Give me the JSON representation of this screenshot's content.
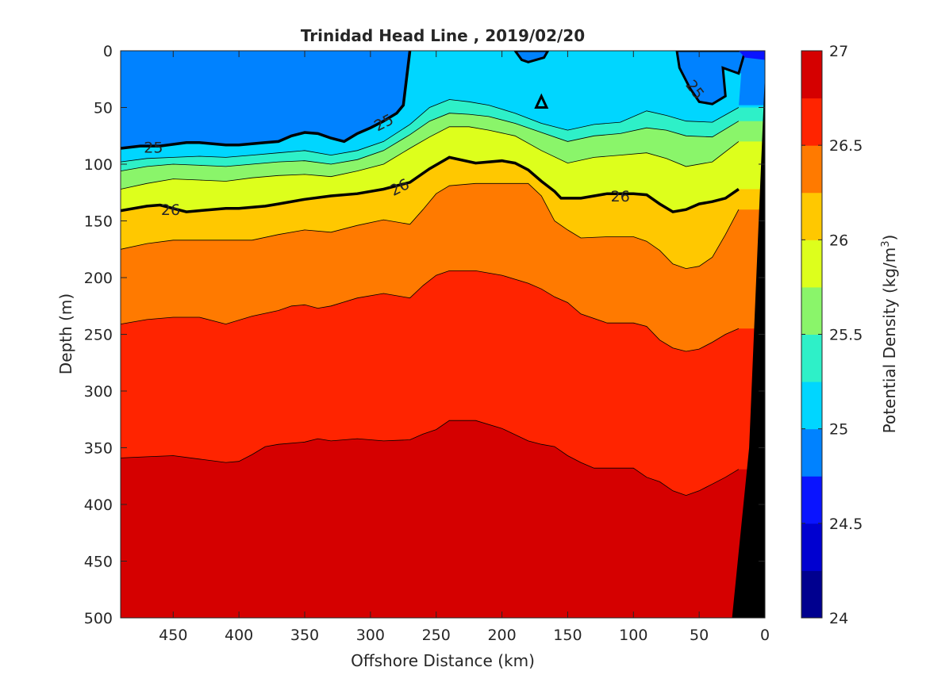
{
  "chart_data": {
    "type": "contour",
    "title": "Trinidad Head Line , 2019/02/20",
    "xlabel": "Offshore Distance (km)",
    "ylabel": "Depth (m)",
    "xlim": [
      490,
      0
    ],
    "ylim": [
      0,
      500
    ],
    "x_reversed": true,
    "y_reversed": true,
    "xticks": [
      450,
      400,
      350,
      300,
      250,
      200,
      150,
      100,
      50,
      0
    ],
    "yticks": [
      0,
      50,
      100,
      150,
      200,
      250,
      300,
      350,
      400,
      450,
      500
    ],
    "colorbar": {
      "label": "Potential Density (kg/m",
      "label_superscript": "3",
      "label_suffix": ")",
      "range": [
        24,
        27
      ],
      "ticks": [
        24,
        24.5,
        25,
        25.5,
        26,
        26.5,
        27
      ],
      "levels": [
        24,
        24.25,
        24.5,
        24.75,
        25,
        25.25,
        25.5,
        25.75,
        26,
        26.25,
        26.5,
        26.75,
        27
      ],
      "colors": [
        "#00008f",
        "#0000d0",
        "#0a14ff",
        "#0082ff",
        "#00d6ff",
        "#2ef0c8",
        "#8af56a",
        "#ddff1c",
        "#ffc800",
        "#ff7a00",
        "#ff2400",
        "#d50000"
      ]
    },
    "contour_labels": [
      {
        "text": "25",
        "x": 465,
        "y": 85,
        "angle": 0
      },
      {
        "text": "25",
        "x": 290,
        "y": 63,
        "angle": -27
      },
      {
        "text": "25",
        "x": 53,
        "y": 34,
        "angle": 53
      },
      {
        "text": "26",
        "x": 452,
        "y": 140,
        "angle": 0
      },
      {
        "text": "26",
        "x": 278,
        "y": 120,
        "angle": -27
      },
      {
        "text": "26",
        "x": 110,
        "y": 128,
        "angle": 0
      }
    ],
    "isopycnals": [
      {
        "level": 25.0,
        "x": [
          490,
          475,
          460,
          440,
          430,
          410,
          400,
          380,
          370,
          360,
          350,
          340,
          330,
          320,
          310,
          300,
          290,
          280,
          275
        ],
        "y": [
          86,
          84,
          84,
          81,
          81,
          83,
          83,
          81,
          80,
          75,
          72,
          73,
          77,
          80,
          73,
          68,
          62,
          55,
          48
        ]
      },
      {
        "level": 25.25,
        "x": [
          490,
          470,
          450,
          430,
          410,
          390,
          370,
          350,
          330,
          310,
          290,
          270,
          255,
          240,
          225,
          210,
          190,
          170,
          150,
          130,
          110,
          90,
          75,
          60,
          40,
          20
        ],
        "y": [
          98,
          95,
          94,
          93,
          94,
          92,
          90,
          88,
          92,
          88,
          80,
          65,
          50,
          43,
          45,
          48,
          55,
          64,
          70,
          65,
          63,
          53,
          57,
          62,
          63,
          50
        ]
      },
      {
        "level": 25.5,
        "x": [
          490,
          470,
          450,
          430,
          410,
          390,
          370,
          350,
          330,
          310,
          290,
          270,
          255,
          240,
          225,
          210,
          190,
          170,
          150,
          130,
          110,
          90,
          75,
          60,
          40,
          20
        ],
        "y": [
          106,
          102,
          100,
          101,
          102,
          100,
          98,
          97,
          100,
          96,
          88,
          74,
          62,
          55,
          56,
          58,
          64,
          72,
          80,
          75,
          73,
          68,
          70,
          75,
          76,
          62
        ]
      },
      {
        "level": 25.75,
        "x": [
          490,
          470,
          450,
          430,
          410,
          390,
          370,
          350,
          330,
          310,
          290,
          270,
          255,
          240,
          225,
          210,
          190,
          170,
          150,
          130,
          110,
          90,
          75,
          60,
          40,
          20
        ],
        "y": [
          122,
          117,
          113,
          114,
          115,
          112,
          110,
          109,
          111,
          106,
          100,
          86,
          76,
          67,
          67,
          70,
          75,
          88,
          99,
          94,
          92,
          90,
          95,
          102,
          98,
          80
        ]
      },
      {
        "level": 26.0,
        "x": [
          490,
          470,
          460,
          440,
          430,
          410,
          400,
          380,
          370,
          350,
          330,
          310,
          290,
          270,
          255,
          240,
          220,
          200,
          190,
          180,
          170,
          160,
          155,
          140,
          120,
          100,
          90,
          80,
          70,
          60,
          50,
          40,
          30,
          20
        ],
        "y": [
          141,
          137,
          136,
          142,
          141,
          139,
          139,
          137,
          135,
          131,
          128,
          126,
          122,
          116,
          104,
          94,
          99,
          97,
          99,
          105,
          115,
          124,
          130,
          130,
          126,
          126,
          127,
          135,
          142,
          140,
          135,
          133,
          130,
          122
        ]
      },
      {
        "level": 26.25,
        "x": [
          490,
          470,
          450,
          430,
          410,
          390,
          370,
          350,
          330,
          310,
          290,
          270,
          260,
          250,
          240,
          220,
          200,
          180,
          170,
          160,
          150,
          140,
          120,
          100,
          90,
          80,
          70,
          60,
          50,
          40,
          30,
          20
        ],
        "y": [
          175,
          170,
          167,
          167,
          167,
          167,
          162,
          158,
          160,
          154,
          149,
          153,
          140,
          126,
          119,
          117,
          117,
          117,
          128,
          150,
          158,
          165,
          164,
          164,
          168,
          176,
          188,
          192,
          190,
          182,
          162,
          140
        ]
      },
      {
        "level": 26.5,
        "x": [
          490,
          470,
          450,
          430,
          410,
          390,
          370,
          360,
          350,
          340,
          330,
          310,
          290,
          270,
          260,
          250,
          240,
          220,
          200,
          180,
          170,
          160,
          150,
          140,
          120,
          100,
          90,
          80,
          70,
          60,
          50,
          40,
          30,
          20
        ],
        "y": [
          241,
          237,
          235,
          235,
          241,
          234,
          229,
          225,
          224,
          227,
          225,
          218,
          214,
          218,
          207,
          198,
          194,
          194,
          198,
          205,
          210,
          217,
          222,
          232,
          240,
          240,
          243,
          255,
          262,
          265,
          263,
          257,
          250,
          245
        ]
      },
      {
        "level": 26.75,
        "x": [
          490,
          470,
          450,
          430,
          410,
          400,
          390,
          380,
          370,
          350,
          340,
          330,
          310,
          290,
          270,
          260,
          250,
          240,
          220,
          200,
          180,
          170,
          160,
          150,
          140,
          130,
          120,
          100,
          90,
          80,
          70,
          60,
          50,
          40,
          30,
          20
        ],
        "y": [
          359,
          358,
          357,
          360,
          363,
          362,
          356,
          349,
          347,
          345,
          342,
          344,
          342,
          344,
          343,
          338,
          334,
          326,
          326,
          333,
          344,
          347,
          349,
          357,
          363,
          368,
          368,
          368,
          376,
          380,
          388,
          392,
          388,
          382,
          376,
          369
        ]
      }
    ],
    "shelf": {
      "x": [
        25,
        12,
        8,
        0,
        0
      ],
      "y": [
        500,
        350,
        240,
        20,
        500
      ]
    }
  }
}
